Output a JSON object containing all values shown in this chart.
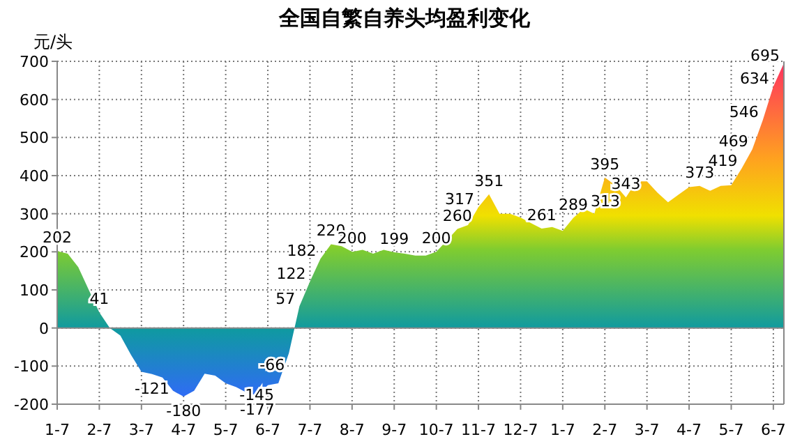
{
  "chart_data": {
    "type": "area",
    "title": "全国自繁自养头均盈利变化",
    "ylabel": "元/头",
    "categories": [
      "1-7",
      null,
      null,
      null,
      "2-7",
      null,
      null,
      null,
      "3-7",
      null,
      null,
      null,
      "4-7",
      null,
      null,
      null,
      "5-7",
      null,
      null,
      null,
      "6-7",
      null,
      null,
      null,
      "7-7",
      null,
      null,
      null,
      "8-7",
      null,
      null,
      null,
      "9-7",
      null,
      null,
      null,
      "10-7",
      null,
      null,
      null,
      "11-7",
      null,
      null,
      null,
      "12-7",
      null,
      null,
      null,
      "1-7",
      null,
      null,
      null,
      "2-7",
      null,
      null,
      null,
      "3-7",
      null,
      null,
      null,
      "4-7",
      null,
      null,
      null,
      "5-7",
      null,
      null,
      null,
      "6-7",
      null
    ],
    "series": [
      {
        "color": "#f0e000",
        "values": [
          202,
          195,
          160,
          100,
          41,
          0,
          -20,
          -70,
          -115,
          -121,
          -130,
          -165,
          -180,
          -165,
          -120,
          -125,
          -145,
          -155,
          -170,
          -177,
          -150,
          -145,
          -66,
          57,
          122,
          182,
          220,
          215,
          200,
          205,
          195,
          205,
          199,
          195,
          190,
          190,
          200,
          230,
          260,
          270,
          317,
          351,
          300,
          300,
          290,
          275,
          261,
          265,
          255,
          289,
          313,
          300,
          395,
          375,
          343,
          385,
          385,
          355,
          330,
          350,
          370,
          373,
          360,
          373,
          375,
          419,
          469,
          546,
          634,
          695
        ],
        "value_labels": [
          "202",
          null,
          null,
          null,
          "41",
          null,
          null,
          null,
          null,
          "-121",
          null,
          null,
          "-180",
          null,
          null,
          null,
          null,
          null,
          null,
          "-177",
          null,
          "-145",
          "-66",
          "57",
          "122",
          "182",
          "220",
          null,
          "200",
          null,
          null,
          null,
          "199",
          null,
          null,
          null,
          "200",
          null,
          "260",
          null,
          "317",
          "351",
          null,
          null,
          null,
          null,
          "261",
          null,
          null,
          "289",
          "313",
          null,
          "395",
          null,
          "343",
          null,
          null,
          null,
          null,
          null,
          null,
          "373",
          null,
          null,
          null,
          "419",
          "469",
          "546",
          "634",
          "695"
        ]
      }
    ],
    "ylim": [
      -200,
      700
    ],
    "yticks": [
      -200,
      -100,
      0,
      100,
      200,
      300,
      400,
      500,
      600,
      700
    ],
    "grid": true
  }
}
